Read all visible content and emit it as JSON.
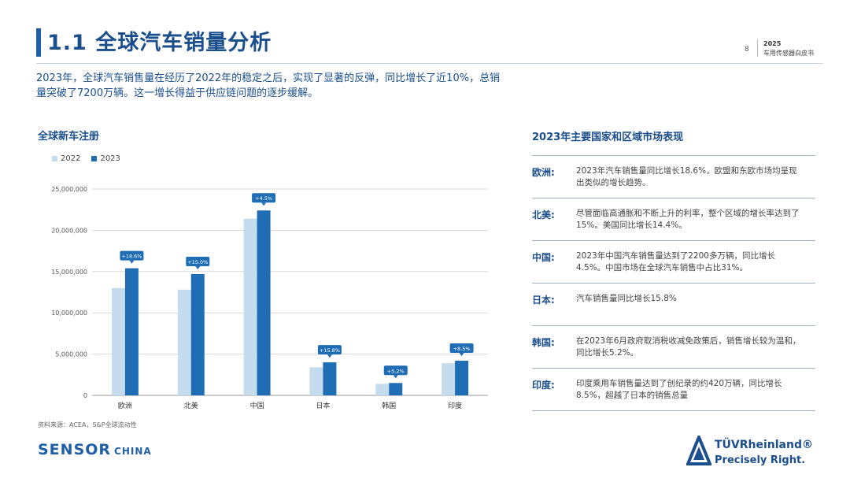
{
  "header": {
    "title": "1.1 全球汽车销量分析",
    "page_number": "8",
    "year": "2025",
    "report_name": "车用传感器白皮书"
  },
  "intro": "2023年，全球汽车销售量在经历了2022年的稳定之后，实现了显著的反弹，同比增长了近10%，总销量突破了7200万辆。这一增长得益于供应链问题的逐步缓解。",
  "chart_section_title": "全球新车注册",
  "chart_data": {
    "type": "bar",
    "categories": [
      "欧洲",
      "北美",
      "中国",
      "日本",
      "韩国",
      "印度"
    ],
    "series": [
      {
        "name": "2022",
        "values": [
          13000000,
          12800000,
          21400000,
          3400000,
          1400000,
          3900000
        ],
        "color": "#c5dbee"
      },
      {
        "name": "2023",
        "values": [
          15400000,
          14700000,
          22400000,
          4000000,
          1500000,
          4200000
        ],
        "color": "#1f6db4"
      }
    ],
    "annotations": [
      "+18.6%",
      "+15.0%",
      "+4.5%",
      "+15.8%",
      "+5.2%",
      "+8.5%"
    ],
    "ylim": [
      0,
      25000000
    ],
    "yticks": [
      "0",
      "5,000,000",
      "10,000,000",
      "15,000,000",
      "20,000,000",
      "25,000,000"
    ],
    "grid": true,
    "legend_position": "top-left"
  },
  "source": "资料来源：ACEA，S&P全球流动性",
  "panel": {
    "title": "2023年主要国家和区域市场表现",
    "rows": [
      {
        "region": "欧洲:",
        "text": "2023年汽车销售量同比增长18.6%，欧盟和东欧市场均呈现出类似的增长趋势。"
      },
      {
        "region": "北美:",
        "text": "尽管面临高通胀和不断上升的利率，整个区域的增长率达到了15%。美国同比增长14.4%。"
      },
      {
        "region": "中国:",
        "text": "2023年中国汽车销售量达到了2200多万辆，同比增长4.5%。中国市场在全球汽车销售中占比31%。"
      },
      {
        "region": "日本:",
        "text": "汽车销售量同比增长15.8%"
      },
      {
        "region": "韩国:",
        "text": "在2023年6月政府取消税收减免政策后，销售增长较为温和，同比增长5.2%。"
      },
      {
        "region": "印度:",
        "text": "印度乘用车销售量达到了创纪录的约420万辆，同比增长8.5%，超越了日本的销售总量"
      }
    ]
  },
  "logos": {
    "left_main": "SENSOR",
    "left_sub": "CHINA",
    "right_brand": "TÜVRheinland®",
    "right_tagline": "Precisely Right."
  }
}
